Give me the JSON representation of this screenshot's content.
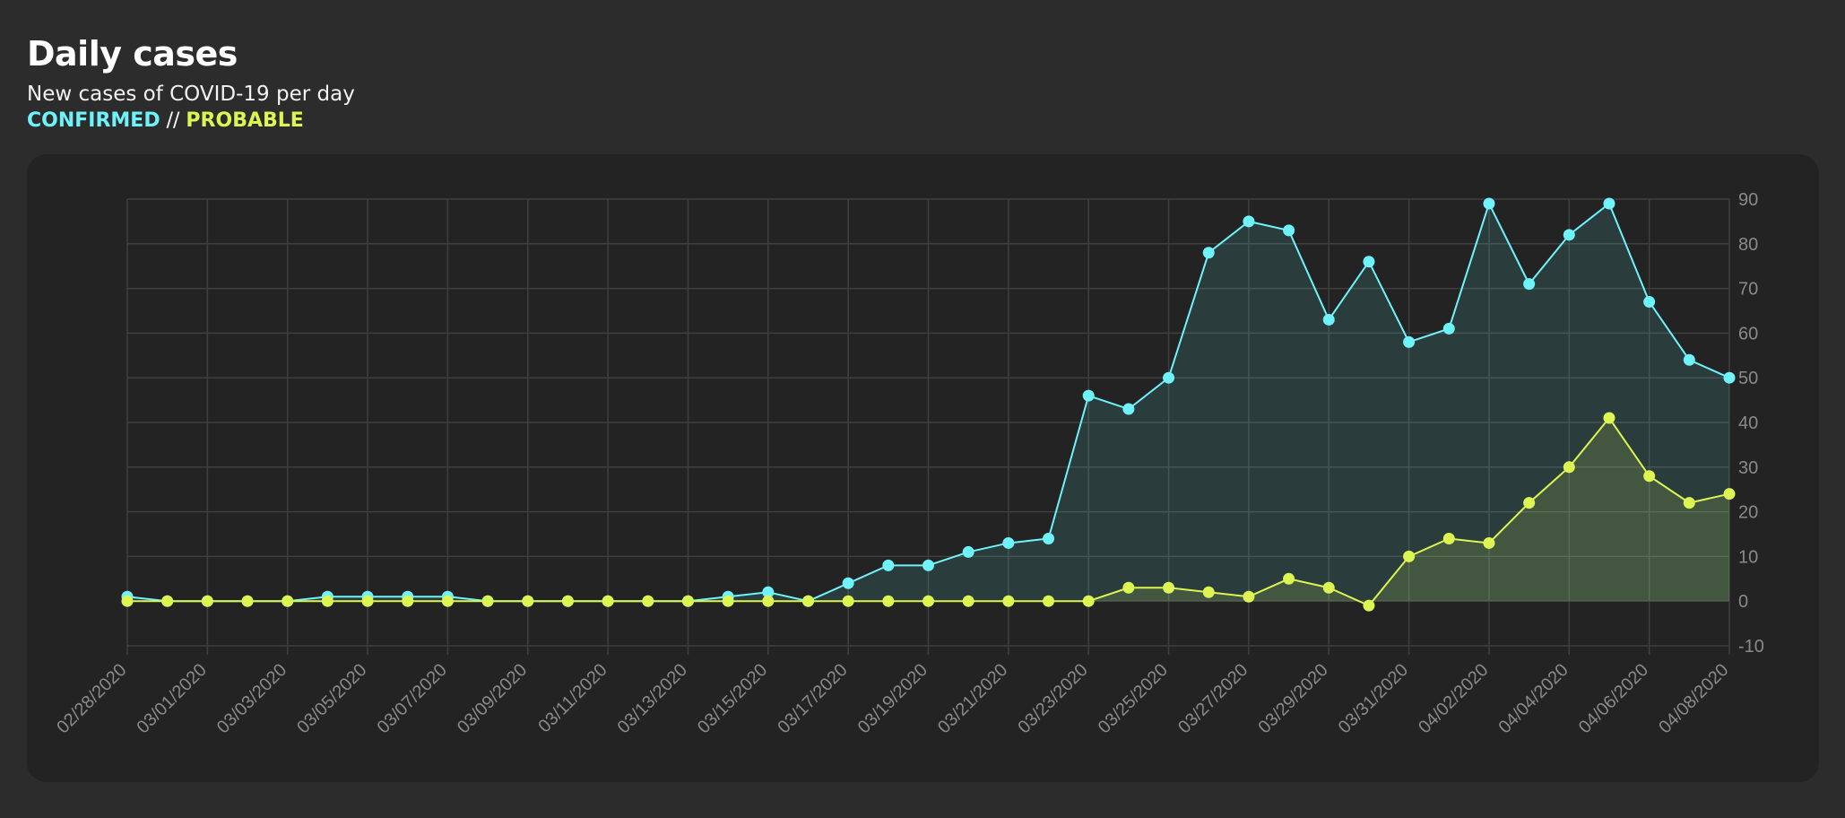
{
  "header": {
    "title": "Daily cases",
    "subtitle": "New cases of COVID-19 per day",
    "legend_confirmed": "CONFIRMED",
    "legend_separator": " // ",
    "legend_probable": "PROBABLE"
  },
  "colors": {
    "confirmed": "#6ff3fb",
    "probable": "#dcf552",
    "grid": "#3f3f3f",
    "panel": "#232323",
    "background": "#2c2c2c"
  },
  "chart_data": {
    "type": "line",
    "title": "Daily cases",
    "subtitle": "New cases of COVID-19 per day",
    "xlabel": "",
    "ylabel": "",
    "ylim": [
      -10,
      90
    ],
    "yticks": [
      -10,
      0,
      10,
      20,
      30,
      40,
      50,
      60,
      70,
      80,
      90
    ],
    "y_axis_side": "right",
    "grid": true,
    "area_fill": true,
    "legend_placement": "top-left (in subtitle)",
    "x": [
      "02/28/2020",
      "02/29/2020",
      "03/01/2020",
      "03/02/2020",
      "03/03/2020",
      "03/04/2020",
      "03/05/2020",
      "03/06/2020",
      "03/07/2020",
      "03/08/2020",
      "03/09/2020",
      "03/10/2020",
      "03/11/2020",
      "03/12/2020",
      "03/13/2020",
      "03/14/2020",
      "03/15/2020",
      "03/16/2020",
      "03/17/2020",
      "03/18/2020",
      "03/19/2020",
      "03/20/2020",
      "03/21/2020",
      "03/22/2020",
      "03/23/2020",
      "03/24/2020",
      "03/25/2020",
      "03/26/2020",
      "03/27/2020",
      "03/28/2020",
      "03/29/2020",
      "03/30/2020",
      "03/31/2020",
      "04/01/2020",
      "04/02/2020",
      "04/03/2020",
      "04/04/2020",
      "04/05/2020",
      "04/06/2020",
      "04/07/2020",
      "04/08/2020"
    ],
    "xtick_labels": [
      "02/28/2020",
      "03/01/2020",
      "03/03/2020",
      "03/05/2020",
      "03/07/2020",
      "03/09/2020",
      "03/11/2020",
      "03/13/2020",
      "03/15/2020",
      "03/17/2020",
      "03/19/2020",
      "03/21/2020",
      "03/23/2020",
      "03/25/2020",
      "03/27/2020",
      "03/29/2020",
      "03/31/2020",
      "04/02/2020",
      "04/04/2020",
      "04/06/2020",
      "04/08/2020"
    ],
    "series": [
      {
        "name": "CONFIRMED",
        "color": "#6ff3fb",
        "values": [
          1,
          0,
          0,
          0,
          0,
          1,
          1,
          1,
          1,
          0,
          0,
          0,
          0,
          0,
          0,
          1,
          2,
          0,
          4,
          8,
          8,
          11,
          13,
          14,
          46,
          43,
          50,
          78,
          85,
          83,
          63,
          76,
          58,
          61,
          89,
          71,
          82,
          89,
          67,
          54,
          50
        ]
      },
      {
        "name": "PROBABLE",
        "color": "#dcf552",
        "values": [
          0,
          0,
          0,
          0,
          0,
          0,
          0,
          0,
          0,
          0,
          0,
          0,
          0,
          0,
          0,
          0,
          0,
          0,
          0,
          0,
          0,
          0,
          0,
          0,
          0,
          3,
          3,
          2,
          1,
          5,
          3,
          -1,
          10,
          14,
          13,
          22,
          30,
          41,
          28,
          22,
          24
        ]
      }
    ]
  }
}
